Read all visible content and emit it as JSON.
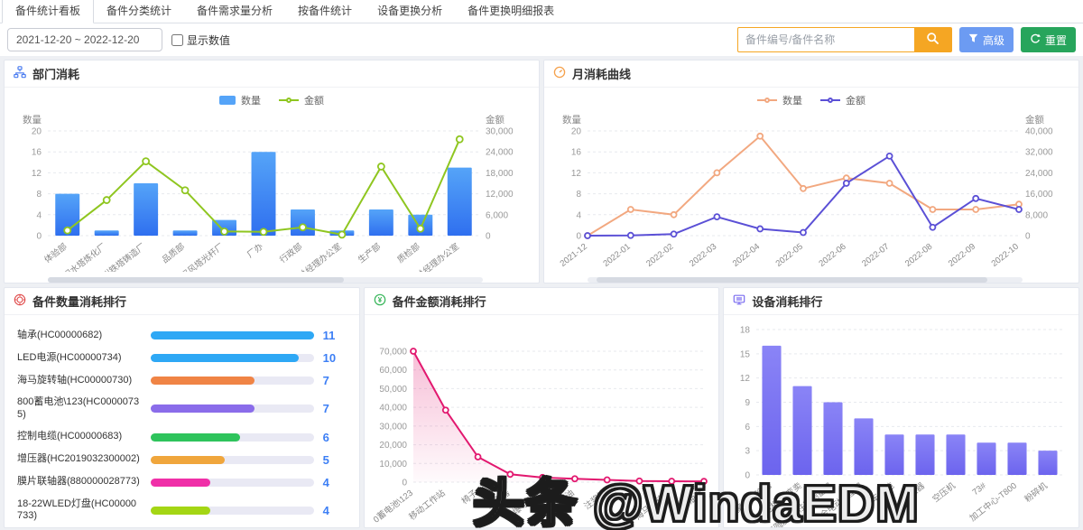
{
  "tabs": [
    {
      "label": "备件统计看板",
      "active": true
    },
    {
      "label": "备件分类统计",
      "active": false
    },
    {
      "label": "备件需求量分析",
      "active": false
    },
    {
      "label": "按备件统计",
      "active": false
    },
    {
      "label": "设备更换分析",
      "active": false
    },
    {
      "label": "备件更换明细报表",
      "active": false
    }
  ],
  "toolbar": {
    "date_range": "2021-12-20 ~ 2022-12-20",
    "show_values_label": "显示数值",
    "search_placeholder": "备件编号/备件名称",
    "advanced_label": "高级",
    "reset_label": "重置"
  },
  "colors": {
    "accent_orange": "#F5A623",
    "accent_blue": "#6C9BF2",
    "accent_green": "#27A55C",
    "rank_value_blue": "#3D7FF5"
  },
  "watermark": {
    "text": "头条 @WindaEDM"
  },
  "chart_data": [
    {
      "id": "dept-consumption",
      "type": "bar",
      "title": "部门消耗",
      "categories": [
        "体验部",
        "沈阳水塔炼化厂",
        "广州铁塔铸造厂",
        "品质部",
        "武汉风塔光杆厂",
        "厂办",
        "行政部",
        "总经理办公室",
        "生产部",
        "质检部",
        "总经理办公室"
      ],
      "series": [
        {
          "name": "数量",
          "type": "bar",
          "axis": "left",
          "color_top": "#55A4F8",
          "color_bottom": "#2F6FEF",
          "values": [
            8,
            1,
            10,
            1,
            3,
            16,
            5,
            1,
            5,
            4,
            13
          ]
        },
        {
          "name": "金额",
          "type": "line",
          "axis": "right",
          "color": "#8FC620",
          "values": [
            1500,
            10200,
            21300,
            13000,
            1200,
            1100,
            2400,
            300,
            19800,
            2000,
            27600
          ]
        }
      ],
      "left_axis": {
        "title": "数量",
        "max": 20,
        "step": 4
      },
      "right_axis": {
        "title": "金额",
        "max": 30000,
        "step": 6000
      },
      "legend_position": "top",
      "grid": true
    },
    {
      "id": "monthly-consumption-curve",
      "type": "line",
      "title": "月消耗曲线",
      "categories": [
        "2021-12",
        "2022-01",
        "2022-02",
        "2022-03",
        "2022-04",
        "2022-05",
        "2022-06",
        "2022-07",
        "2022-08",
        "2022-09",
        "2022-10"
      ],
      "series": [
        {
          "name": "数量",
          "type": "line",
          "axis": "left",
          "color": "#F2A880",
          "values": [
            0,
            5,
            4,
            12,
            19,
            9,
            11,
            10,
            5,
            5,
            6
          ]
        },
        {
          "name": "金额",
          "type": "line",
          "axis": "right",
          "color": "#5B50D6",
          "values": [
            0,
            100,
            600,
            7200,
            2600,
            1200,
            20000,
            30400,
            3200,
            14200,
            10000
          ]
        }
      ],
      "left_axis": {
        "title": "数量",
        "max": 20,
        "step": 4
      },
      "right_axis": {
        "title": "金额",
        "max": 40000,
        "step": 8000
      },
      "legend_position": "top",
      "grid": true
    },
    {
      "id": "parts-quantity-ranking",
      "type": "table",
      "title": "备件数量消耗排行",
      "max": 11,
      "rows": [
        {
          "label": "轴承(HC00000682)",
          "value": 11,
          "color": "#2EA8F5"
        },
        {
          "label": "LED电源(HC00000734)",
          "value": 10,
          "color": "#2EA8F5"
        },
        {
          "label": "海马旋转轴(HC00000730)",
          "value": 7,
          "color": "#F08445"
        },
        {
          "label": "800蓄电池\\123(HC00000735)",
          "value": 7,
          "color": "#8A6CEA"
        },
        {
          "label": "控制电缆(HC00000683)",
          "value": 6,
          "color": "#2EC45C"
        },
        {
          "label": "增压器(HC2019032300002)",
          "value": 5,
          "color": "#F0A63C"
        },
        {
          "label": "膜片联轴器(880000028773)",
          "value": 4,
          "color": "#F02FA8"
        },
        {
          "label": "18-22WLED灯盘(HC00000733)",
          "value": 4,
          "color": "#A4D614"
        }
      ]
    },
    {
      "id": "parts-amount-ranking",
      "type": "area",
      "title": "备件金额消耗排行",
      "categories": [
        "0蓄电池\\123",
        "移动工作站",
        "椅子",
        "增压器",
        "防爆电风扇",
        "液压油",
        "注浆管",
        "11",
        "海马旋转轴",
        "齿轮油泵"
      ],
      "values": [
        70000,
        38500,
        13500,
        4200,
        2500,
        1800,
        1200,
        600,
        500,
        400
      ],
      "y_axis": {
        "max": 70000,
        "step": 10000
      },
      "color": "#E2186F",
      "grid": true
    },
    {
      "id": "device-consumption-ranking",
      "type": "bar",
      "title": "设备消耗排行",
      "categories": [
        "聚脲喷涂机",
        "发电机-已变卖",
        "真圆度·圆柱度测量机",
        "全电动注塑机",
        "行车30吨",
        "变压器",
        "空压机",
        "73#",
        "加工中心-T800",
        "粉碎机"
      ],
      "values": [
        16,
        11,
        9,
        7,
        5,
        5,
        5,
        4,
        4,
        3
      ],
      "y_axis": {
        "max": 18,
        "step": 3
      },
      "color_top": "#8A84F6",
      "color_bottom": "#6C64EE",
      "grid": true
    }
  ]
}
